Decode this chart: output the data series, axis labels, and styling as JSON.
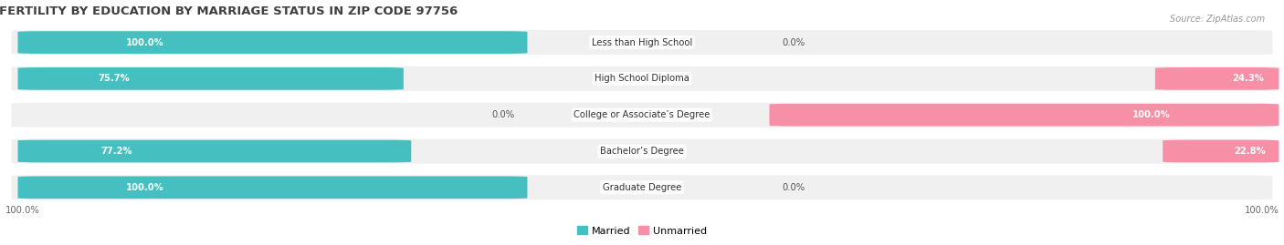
{
  "title": "FERTILITY BY EDUCATION BY MARRIAGE STATUS IN ZIP CODE 97756",
  "source": "Source: ZipAtlas.com",
  "categories": [
    "Less than High School",
    "High School Diploma",
    "College or Associate’s Degree",
    "Bachelor’s Degree",
    "Graduate Degree"
  ],
  "married_pct": [
    100.0,
    75.7,
    0.0,
    77.2,
    100.0
  ],
  "unmarried_pct": [
    0.0,
    24.3,
    100.0,
    22.8,
    0.0
  ],
  "married_color": "#45bfbf",
  "unmarried_color": "#f78fa7",
  "row_bg": "#f0f0f0",
  "title_color": "#404040",
  "figsize": [
    14.06,
    2.69
  ],
  "dpi": 100,
  "legend_married": "Married",
  "legend_unmarried": "Unmarried",
  "bottom_left_label": "100.0%",
  "bottom_right_label": "100.0%"
}
